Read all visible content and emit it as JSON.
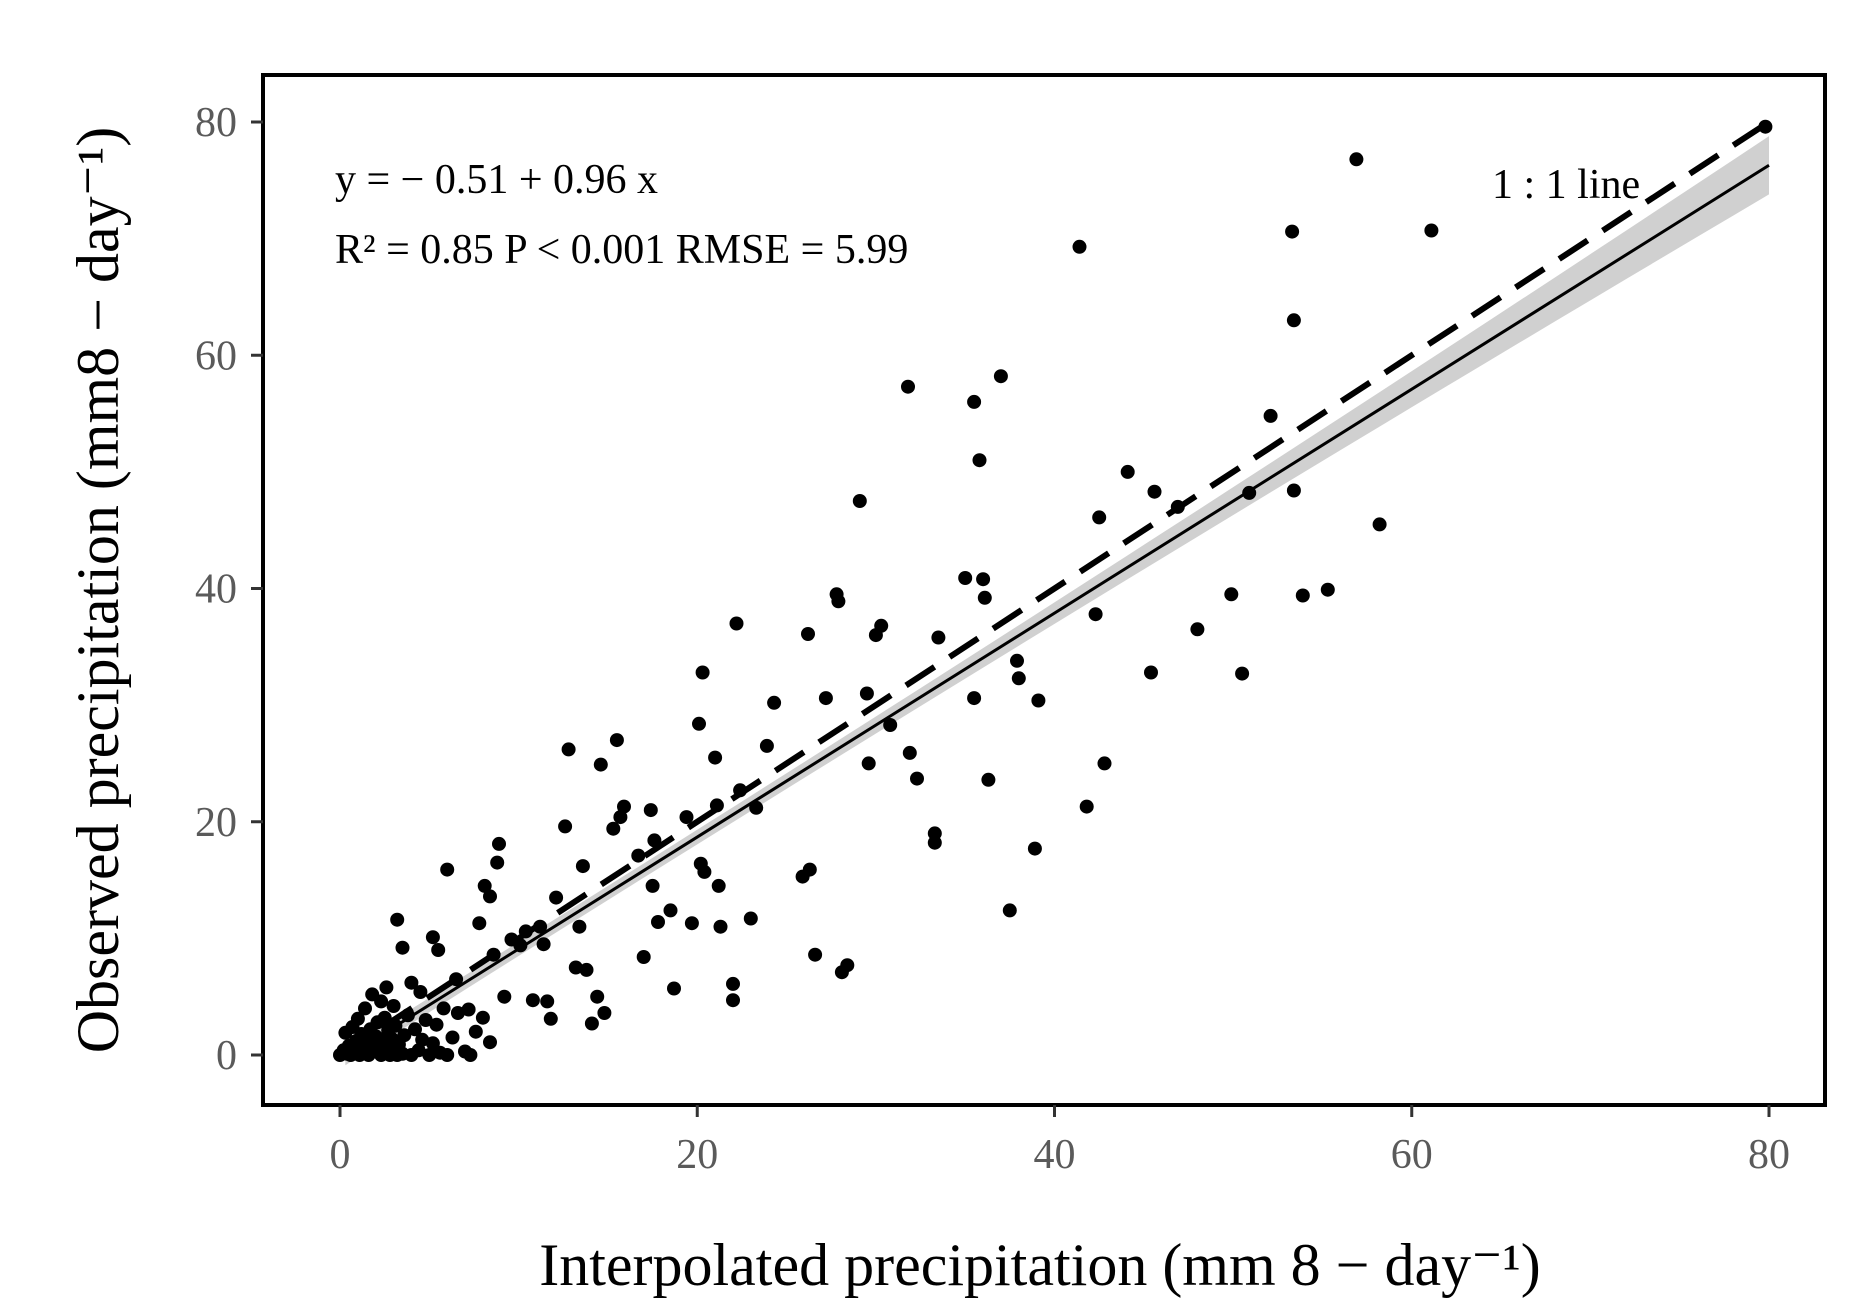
{
  "chart_data": {
    "type": "scatter",
    "title": "",
    "xlabel": "Interpolated precipitation (mm 8 − day⁻¹)",
    "ylabel": "Observed precipitation (mm8 − day⁻¹)",
    "xlim": [
      -5,
      85
    ],
    "ylim": [
      -5,
      84
    ],
    "x_ticks": [
      0,
      20,
      40,
      60,
      80
    ],
    "y_ticks": [
      0,
      20,
      40,
      60,
      80
    ],
    "grid": false,
    "equation_text": "y = − 0.51 + 0.96 x",
    "stats_text": "R² = 0.85  P < 0.001  RMSE = 5.99",
    "stats": {
      "intercept": -0.51,
      "slope": 0.96,
      "r2": 0.85,
      "p_text": "P < 0.001",
      "rmse": 5.99
    },
    "one_to_one_label": "1 : 1 line",
    "regression": {
      "intercept": -0.51,
      "slope": 0.96,
      "x_range": [
        0.3,
        80
      ],
      "ci_halfwidth_at_mean": 0.6,
      "ci_halfwidth_at_max": 2.5,
      "x_mean": 12
    },
    "one_to_one": {
      "x_range": [
        0,
        80
      ]
    },
    "points": [
      [
        0,
        0
      ],
      [
        0.2,
        0.4
      ],
      [
        0.4,
        0.1
      ],
      [
        0.5,
        0.8
      ],
      [
        0.6,
        0
      ],
      [
        0.8,
        0.3
      ],
      [
        0.9,
        1.2
      ],
      [
        1,
        0.5
      ],
      [
        1.1,
        0
      ],
      [
        1.2,
        1.8
      ],
      [
        1.3,
        0.7
      ],
      [
        1.4,
        0.2
      ],
      [
        1.5,
        1.5
      ],
      [
        1.6,
        0
      ],
      [
        1.7,
        2.2
      ],
      [
        1.8,
        0.9
      ],
      [
        1.9,
        0.3
      ],
      [
        2,
        1.6
      ],
      [
        2.1,
        2.8
      ],
      [
        2.2,
        0.5
      ],
      [
        2.3,
        0
      ],
      [
        2.4,
        1.1
      ],
      [
        2.5,
        3.2
      ],
      [
        2.6,
        0.2
      ],
      [
        2.7,
        2.1
      ],
      [
        2.8,
        0
      ],
      [
        2.9,
        1.4
      ],
      [
        3,
        0.6
      ],
      [
        3.1,
        2.5
      ],
      [
        3.2,
        0
      ],
      [
        0.3,
        1.9
      ],
      [
        0.7,
        2.4
      ],
      [
        1,
        3.1
      ],
      [
        1.4,
        4.0
      ],
      [
        1.8,
        5.2
      ],
      [
        2.3,
        4.6
      ],
      [
        2.6,
        5.8
      ],
      [
        3,
        4.2
      ],
      [
        3.3,
        0.9
      ],
      [
        3.5,
        0.1
      ],
      [
        3.6,
        1.7
      ],
      [
        3.8,
        3.4
      ],
      [
        4,
        0
      ],
      [
        4.2,
        2.2
      ],
      [
        4.4,
        0.4
      ],
      [
        4.6,
        1.3
      ],
      [
        4.8,
        3.0
      ],
      [
        5,
        0
      ],
      [
        5.2,
        1.0
      ],
      [
        5.4,
        2.6
      ],
      [
        5.6,
        0.2
      ],
      [
        5.8,
        4.0
      ],
      [
        6,
        0
      ],
      [
        6.3,
        1.5
      ],
      [
        6.6,
        3.6
      ],
      [
        7,
        0.3
      ],
      [
        7.3,
        0
      ],
      [
        7.6,
        2.0
      ],
      [
        8,
        3.2
      ],
      [
        8.4,
        1.1
      ],
      [
        3.2,
        11.6
      ],
      [
        3.5,
        9.2
      ],
      [
        4,
        6.2
      ],
      [
        4.5,
        5.4
      ],
      [
        5.2,
        10.1
      ],
      [
        5.5,
        9.0
      ],
      [
        6,
        15.9
      ],
      [
        6.5,
        6.5
      ],
      [
        7.2,
        3.9
      ],
      [
        7.8,
        11.3
      ],
      [
        8.1,
        14.5
      ],
      [
        8.4,
        13.6
      ],
      [
        8.6,
        8.6
      ],
      [
        8.8,
        16.5
      ],
      [
        8.9,
        18.1
      ],
      [
        9.2,
        5.0
      ],
      [
        9.6,
        9.9
      ],
      [
        10.1,
        9.4
      ],
      [
        10.4,
        10.6
      ],
      [
        10.8,
        4.7
      ],
      [
        11.2,
        11.0
      ],
      [
        11.4,
        9.5
      ],
      [
        11.6,
        4.6
      ],
      [
        11.8,
        3.1
      ],
      [
        12.1,
        13.5
      ],
      [
        12.6,
        19.6
      ],
      [
        12.8,
        26.2
      ],
      [
        13.2,
        7.5
      ],
      [
        13.4,
        11.0
      ],
      [
        13.6,
        16.2
      ],
      [
        13.8,
        7.3
      ],
      [
        14.1,
        2.7
      ],
      [
        14.4,
        5.0
      ],
      [
        14.6,
        24.9
      ],
      [
        14.8,
        3.6
      ],
      [
        15.3,
        19.4
      ],
      [
        15.5,
        27.0
      ],
      [
        15.7,
        20.4
      ],
      [
        15.9,
        21.3
      ],
      [
        16.7,
        17.1
      ],
      [
        17.0,
        8.4
      ],
      [
        17.4,
        21.0
      ],
      [
        17.5,
        14.5
      ],
      [
        17.6,
        18.4
      ],
      [
        17.8,
        11.4
      ],
      [
        18.5,
        12.4
      ],
      [
        18.7,
        5.7
      ],
      [
        19.4,
        20.4
      ],
      [
        19.7,
        11.3
      ],
      [
        20.1,
        28.4
      ],
      [
        20.2,
        16.4
      ],
      [
        20.3,
        32.8
      ],
      [
        20.4,
        15.7
      ],
      [
        21.0,
        25.5
      ],
      [
        21.1,
        21.4
      ],
      [
        21.2,
        14.5
      ],
      [
        21.3,
        11.0
      ],
      [
        22.0,
        4.7
      ],
      [
        22.0,
        6.1
      ],
      [
        22.2,
        37.0
      ],
      [
        22.4,
        22.7
      ],
      [
        23.0,
        11.7
      ],
      [
        23.3,
        21.2
      ],
      [
        23.9,
        26.5
      ],
      [
        24.3,
        30.2
      ],
      [
        25.9,
        15.3
      ],
      [
        26.2,
        36.1
      ],
      [
        26.3,
        15.9
      ],
      [
        26.6,
        8.6
      ],
      [
        27.2,
        30.6
      ],
      [
        27.8,
        39.5
      ],
      [
        27.9,
        38.9
      ],
      [
        28.1,
        7.1
      ],
      [
        28.4,
        7.7
      ],
      [
        29.1,
        47.5
      ],
      [
        29.5,
        31.0
      ],
      [
        29.6,
        25.0
      ],
      [
        30.0,
        36.0
      ],
      [
        30.3,
        36.8
      ],
      [
        30.8,
        28.3
      ],
      [
        31.8,
        57.3
      ],
      [
        31.9,
        25.9
      ],
      [
        32.3,
        23.7
      ],
      [
        33.3,
        18.2
      ],
      [
        33.3,
        19.0
      ],
      [
        33.5,
        35.8
      ],
      [
        35.0,
        40.9
      ],
      [
        35.5,
        56.0
      ],
      [
        35.5,
        30.6
      ],
      [
        35.8,
        51.0
      ],
      [
        36.0,
        40.8
      ],
      [
        36.1,
        39.2
      ],
      [
        36.3,
        23.6
      ],
      [
        37.0,
        58.2
      ],
      [
        37.5,
        12.4
      ],
      [
        37.9,
        33.8
      ],
      [
        38.0,
        32.3
      ],
      [
        38.9,
        17.7
      ],
      [
        39.1,
        30.4
      ],
      [
        41.4,
        69.3
      ],
      [
        41.8,
        21.3
      ],
      [
        42.3,
        37.8
      ],
      [
        42.5,
        46.1
      ],
      [
        42.8,
        25.0
      ],
      [
        44.1,
        50.0
      ],
      [
        45.4,
        32.8
      ],
      [
        45.6,
        48.3
      ],
      [
        46.9,
        47.0
      ],
      [
        48.0,
        36.5
      ],
      [
        49.9,
        39.5
      ],
      [
        50.5,
        32.7
      ],
      [
        50.9,
        48.2
      ],
      [
        52.1,
        54.8
      ],
      [
        53.3,
        70.6
      ],
      [
        53.4,
        63.0
      ],
      [
        53.4,
        48.4
      ],
      [
        53.9,
        39.4
      ],
      [
        55.3,
        39.9
      ],
      [
        56.9,
        76.8
      ],
      [
        58.2,
        45.5
      ],
      [
        61.1,
        70.7
      ],
      [
        79.8,
        79.6
      ]
    ]
  }
}
